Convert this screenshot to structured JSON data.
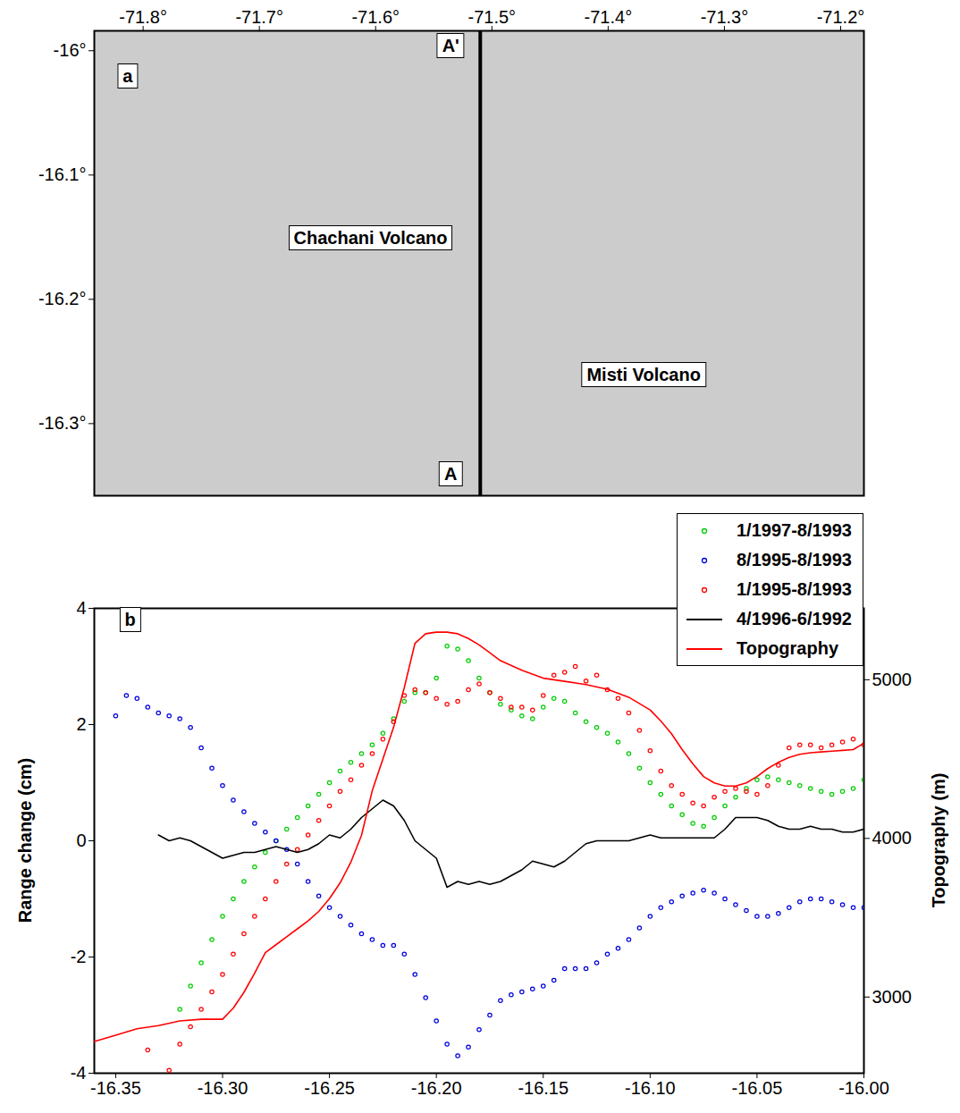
{
  "chart_data": [
    {
      "type": "map",
      "xlim": [
        -71.842,
        -71.18
      ],
      "ylim": [
        -16.358,
        -15.984
      ],
      "xticks": [
        {
          "value": -71.8,
          "label": "-71.8°"
        },
        {
          "value": -71.7,
          "label": "-71.7°"
        },
        {
          "value": -71.6,
          "label": "-71.6°"
        },
        {
          "value": -71.5,
          "label": "-71.5°"
        },
        {
          "value": -71.4,
          "label": "-71.4°"
        },
        {
          "value": -71.3,
          "label": "-71.3°"
        },
        {
          "value": -71.2,
          "label": "-71.2°"
        }
      ],
      "yticks": [
        {
          "value": -16,
          "label": "-16°"
        },
        {
          "value": -16.1,
          "label": "-16.1°"
        },
        {
          "value": -16.2,
          "label": "-16.2°"
        },
        {
          "value": -16.3,
          "label": "-16.3°"
        }
      ],
      "profile": {
        "x": -71.51
      },
      "annotations": [
        {
          "text": "a",
          "x": -71.813,
          "y": -16.021
        },
        {
          "text": "A'",
          "x": -71.535,
          "y": -15.996
        },
        {
          "text": "A",
          "x": -71.535,
          "y": -16.341
        },
        {
          "text": "Chachani Volcano",
          "x": -71.604,
          "y": -16.151
        },
        {
          "text": "Misti Volcano",
          "x": -71.369,
          "y": -16.261
        }
      ]
    },
    {
      "type": "scatter",
      "xlim": [
        -16.36,
        -16.0
      ],
      "xticks": [
        -16.35,
        {
          "value": -16.3,
          "label": "-16.30"
        },
        -16.25,
        {
          "value": -16.2,
          "label": "-16.20"
        },
        -16.15,
        {
          "value": -16.1,
          "label": "-16.10"
        },
        -16.05,
        {
          "value": -16.0,
          "label": "-16.00"
        }
      ],
      "ylim": [
        -4,
        4
      ],
      "yticks": [
        -4,
        -2,
        0,
        2,
        4
      ],
      "y2lim": [
        2520,
        5450
      ],
      "y2ticks": [
        3000,
        4000,
        5000
      ],
      "ylabel": "Range change (cm)",
      "y2label": "Topography (m)",
      "legend": "top-right",
      "annotations": [
        {
          "text": "b",
          "x": -16.343,
          "y": 3.8
        }
      ],
      "series": [
        {
          "name": "1/1997-8/1993",
          "color": "#00cc00",
          "type": "scatter",
          "marker": "circle",
          "x": [
            -16.32,
            -16.315,
            -16.31,
            -16.305,
            -16.3,
            -16.295,
            -16.29,
            -16.285,
            -16.28,
            -16.275,
            -16.27,
            -16.265,
            -16.26,
            -16.255,
            -16.25,
            -16.245,
            -16.24,
            -16.235,
            -16.23,
            -16.225,
            -16.22,
            -16.215,
            -16.21,
            -16.205,
            -16.2,
            -16.195,
            -16.19,
            -16.185,
            -16.18,
            -16.175,
            -16.17,
            -16.165,
            -16.16,
            -16.155,
            -16.15,
            -16.145,
            -16.14,
            -16.135,
            -16.13,
            -16.125,
            -16.12,
            -16.115,
            -16.11,
            -16.105,
            -16.1,
            -16.095,
            -16.09,
            -16.085,
            -16.08,
            -16.075,
            -16.07,
            -16.065,
            -16.06,
            -16.055,
            -16.05,
            -16.045,
            -16.04,
            -16.035,
            -16.03,
            -16.025,
            -16.02,
            -16.015,
            -16.01,
            -16.005,
            -16.0
          ],
          "values": [
            -2.9,
            -2.5,
            -2.1,
            -1.7,
            -1.3,
            -1.0,
            -0.7,
            -0.45,
            -0.2,
            0.0,
            0.2,
            0.4,
            0.6,
            0.8,
            1.0,
            1.2,
            1.35,
            1.5,
            1.65,
            1.85,
            2.1,
            2.4,
            2.55,
            2.55,
            2.8,
            3.35,
            3.3,
            3.1,
            2.8,
            2.55,
            2.35,
            2.25,
            2.15,
            2.1,
            2.3,
            2.45,
            2.4,
            2.2,
            2.05,
            1.95,
            1.85,
            1.7,
            1.5,
            1.25,
            1.0,
            0.8,
            0.6,
            0.45,
            0.3,
            0.25,
            0.4,
            0.6,
            0.75,
            0.9,
            1.05,
            1.1,
            1.05,
            1.0,
            0.95,
            0.9,
            0.85,
            0.8,
            0.85,
            0.9,
            1.05
          ]
        },
        {
          "name": "8/1995-8/1993",
          "color": "#0000dd",
          "type": "scatter",
          "marker": "circle",
          "x": [
            -16.35,
            -16.345,
            -16.34,
            -16.335,
            -16.33,
            -16.325,
            -16.32,
            -16.315,
            -16.31,
            -16.305,
            -16.3,
            -16.295,
            -16.29,
            -16.285,
            -16.28,
            -16.275,
            -16.27,
            -16.265,
            -16.26,
            -16.255,
            -16.25,
            -16.245,
            -16.24,
            -16.235,
            -16.23,
            -16.225,
            -16.22,
            -16.215,
            -16.21,
            -16.205,
            -16.2,
            -16.195,
            -16.19,
            -16.185,
            -16.18,
            -16.175,
            -16.17,
            -16.165,
            -16.16,
            -16.155,
            -16.15,
            -16.145,
            -16.14,
            -16.135,
            -16.13,
            -16.125,
            -16.12,
            -16.115,
            -16.11,
            -16.105,
            -16.1,
            -16.095,
            -16.09,
            -16.085,
            -16.08,
            -16.075,
            -16.07,
            -16.065,
            -16.06,
            -16.055,
            -16.05,
            -16.045,
            -16.04,
            -16.035,
            -16.03,
            -16.025,
            -16.02,
            -16.015,
            -16.01,
            -16.005,
            -16.0
          ],
          "values": [
            2.15,
            2.5,
            2.45,
            2.3,
            2.2,
            2.15,
            2.1,
            1.95,
            1.6,
            1.25,
            0.95,
            0.7,
            0.5,
            0.3,
            0.15,
            0.0,
            -0.15,
            -0.4,
            -0.7,
            -0.95,
            -1.15,
            -1.3,
            -1.45,
            -1.6,
            -1.7,
            -1.8,
            -1.8,
            -1.95,
            -2.3,
            -2.7,
            -3.1,
            -3.5,
            -3.7,
            -3.55,
            -3.25,
            -3.0,
            -2.75,
            -2.65,
            -2.6,
            -2.55,
            -2.5,
            -2.4,
            -2.2,
            -2.2,
            -2.2,
            -2.1,
            -1.95,
            -1.85,
            -1.7,
            -1.5,
            -1.3,
            -1.15,
            -1.05,
            -0.95,
            -0.9,
            -0.85,
            -0.9,
            -1.0,
            -1.1,
            -1.2,
            -1.3,
            -1.3,
            -1.25,
            -1.15,
            -1.05,
            -1.0,
            -1.0,
            -1.05,
            -1.1,
            -1.15,
            -1.15
          ]
        },
        {
          "name": "1/1995-8/1993",
          "color": "#ff0000",
          "type": "scatter",
          "marker": "circle",
          "x": [
            -16.335,
            -16.325,
            -16.32,
            -16.315,
            -16.31,
            -16.305,
            -16.3,
            -16.295,
            -16.29,
            -16.285,
            -16.28,
            -16.275,
            -16.27,
            -16.265,
            -16.26,
            -16.255,
            -16.25,
            -16.245,
            -16.24,
            -16.235,
            -16.23,
            -16.225,
            -16.22,
            -16.215,
            -16.21,
            -16.205,
            -16.2,
            -16.195,
            -16.19,
            -16.185,
            -16.18,
            -16.175,
            -16.17,
            -16.165,
            -16.16,
            -16.155,
            -16.15,
            -16.145,
            -16.14,
            -16.135,
            -16.13,
            -16.125,
            -16.12,
            -16.115,
            -16.11,
            -16.105,
            -16.1,
            -16.095,
            -16.09,
            -16.085,
            -16.08,
            -16.075,
            -16.07,
            -16.065,
            -16.06,
            -16.055,
            -16.05,
            -16.045,
            -16.04,
            -16.035,
            -16.03,
            -16.025,
            -16.02,
            -16.015,
            -16.01,
            -16.005,
            -16.0
          ],
          "values": [
            -3.6,
            -3.95,
            -3.5,
            -3.2,
            -2.9,
            -2.6,
            -2.3,
            -1.95,
            -1.6,
            -1.3,
            -1.0,
            -0.7,
            -0.4,
            -0.15,
            0.1,
            0.35,
            0.6,
            0.85,
            1.05,
            1.3,
            1.5,
            1.75,
            2.05,
            2.5,
            2.6,
            2.55,
            2.45,
            2.35,
            2.4,
            2.6,
            2.7,
            2.55,
            2.45,
            2.3,
            2.3,
            2.25,
            2.5,
            2.85,
            2.9,
            3.0,
            2.75,
            2.85,
            2.6,
            2.45,
            2.2,
            1.9,
            1.55,
            1.2,
            0.95,
            0.8,
            0.65,
            0.6,
            0.75,
            0.85,
            0.9,
            0.85,
            0.8,
            0.95,
            1.3,
            1.6,
            1.65,
            1.65,
            1.6,
            1.65,
            1.7,
            1.75,
            1.65
          ]
        },
        {
          "name": "4/1996-6/1992",
          "color": "#000000",
          "type": "line",
          "line_style": "solid",
          "x": [
            -16.33,
            -16.325,
            -16.32,
            -16.315,
            -16.31,
            -16.305,
            -16.3,
            -16.295,
            -16.29,
            -16.285,
            -16.28,
            -16.275,
            -16.27,
            -16.265,
            -16.26,
            -16.255,
            -16.25,
            -16.245,
            -16.24,
            -16.235,
            -16.23,
            -16.225,
            -16.22,
            -16.215,
            -16.21,
            -16.205,
            -16.2,
            -16.195,
            -16.19,
            -16.185,
            -16.18,
            -16.175,
            -16.17,
            -16.165,
            -16.16,
            -16.155,
            -16.15,
            -16.145,
            -16.14,
            -16.135,
            -16.13,
            -16.125,
            -16.12,
            -16.115,
            -16.11,
            -16.105,
            -16.1,
            -16.095,
            -16.09,
            -16.085,
            -16.08,
            -16.075,
            -16.07,
            -16.065,
            -16.06,
            -16.055,
            -16.05,
            -16.045,
            -16.04,
            -16.035,
            -16.03,
            -16.025,
            -16.02,
            -16.015,
            -16.01,
            -16.005,
            -16.0
          ],
          "values": [
            0.1,
            0.0,
            0.05,
            0.0,
            -0.1,
            -0.2,
            -0.3,
            -0.25,
            -0.2,
            -0.2,
            -0.15,
            -0.1,
            -0.15,
            -0.2,
            -0.15,
            -0.05,
            0.1,
            0.05,
            0.2,
            0.4,
            0.55,
            0.7,
            0.6,
            0.35,
            0.0,
            -0.15,
            -0.3,
            -0.8,
            -0.7,
            -0.75,
            -0.7,
            -0.75,
            -0.7,
            -0.6,
            -0.5,
            -0.35,
            -0.4,
            -0.45,
            -0.35,
            -0.2,
            -0.05,
            0.0,
            0.0,
            0.0,
            0.0,
            0.05,
            0.1,
            0.05,
            0.05,
            0.05,
            0.05,
            0.05,
            0.05,
            0.2,
            0.4,
            0.4,
            0.4,
            0.35,
            0.25,
            0.2,
            0.2,
            0.25,
            0.2,
            0.2,
            0.15,
            0.15,
            0.2
          ]
        },
        {
          "name": "Topography",
          "color": "#ff0000",
          "type": "line",
          "line_style": "solid",
          "axis": "y2",
          "x": [
            -16.36,
            -16.35,
            -16.34,
            -16.33,
            -16.32,
            -16.31,
            -16.3,
            -16.295,
            -16.29,
            -16.285,
            -16.28,
            -16.275,
            -16.27,
            -16.265,
            -16.26,
            -16.255,
            -16.25,
            -16.245,
            -16.24,
            -16.235,
            -16.23,
            -16.225,
            -16.22,
            -16.215,
            -16.21,
            -16.205,
            -16.2,
            -16.195,
            -16.19,
            -16.185,
            -16.18,
            -16.175,
            -16.17,
            -16.16,
            -16.15,
            -16.14,
            -16.13,
            -16.12,
            -16.11,
            -16.1,
            -16.095,
            -16.09,
            -16.085,
            -16.08,
            -16.075,
            -16.07,
            -16.065,
            -16.06,
            -16.055,
            -16.05,
            -16.045,
            -16.04,
            -16.035,
            -16.03,
            -16.025,
            -16.02,
            -16.015,
            -16.01,
            -16.005,
            -16.0
          ],
          "values": [
            2720,
            2760,
            2800,
            2820,
            2850,
            2860,
            2860,
            2930,
            3030,
            3150,
            3280,
            3330,
            3380,
            3430,
            3480,
            3540,
            3620,
            3720,
            3850,
            4020,
            4300,
            4500,
            4700,
            4950,
            5230,
            5290,
            5300,
            5300,
            5290,
            5260,
            5220,
            5170,
            5120,
            5060,
            5010,
            4990,
            4970,
            4940,
            4890,
            4810,
            4740,
            4660,
            4560,
            4470,
            4390,
            4350,
            4330,
            4330,
            4350,
            4390,
            4440,
            4480,
            4510,
            4530,
            4540,
            4545,
            4550,
            4555,
            4560,
            4600
          ]
        }
      ]
    }
  ]
}
